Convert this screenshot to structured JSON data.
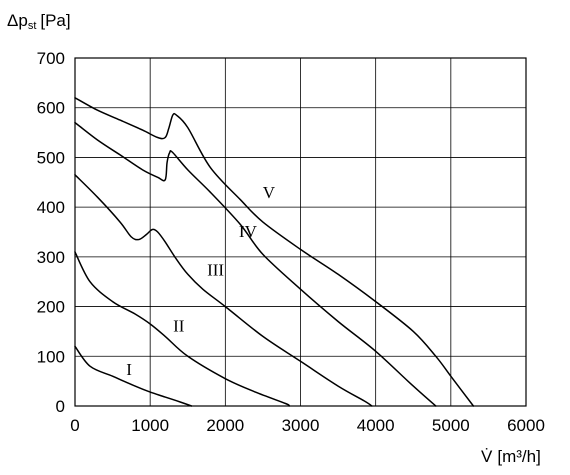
{
  "chart_data": {
    "type": "line",
    "ylabel": "Δp",
    "ylabel_sub": "st",
    "ylabel_unit": "[Pa]",
    "xlabel": "V̇",
    "xlabel_unit": "[m³/h]",
    "xlim": [
      0,
      6000
    ],
    "ylim": [
      0,
      700
    ],
    "xticks": [
      0,
      1000,
      2000,
      3000,
      4000,
      5000,
      6000
    ],
    "yticks": [
      0,
      100,
      200,
      300,
      400,
      500,
      600,
      700
    ],
    "grid": true,
    "series": [
      {
        "name": "I",
        "x": [
          0,
          200,
          500,
          800,
          1000,
          1200,
          1400,
          1550
        ],
        "y": [
          120,
          80,
          60,
          40,
          28,
          18,
          8,
          0
        ]
      },
      {
        "name": "II",
        "x": [
          0,
          200,
          500,
          800,
          1000,
          1200,
          1500,
          2000,
          2400,
          2800,
          2850
        ],
        "y": [
          310,
          250,
          210,
          185,
          165,
          140,
          100,
          55,
          28,
          5,
          0
        ]
      },
      {
        "name": "III",
        "x": [
          0,
          300,
          600,
          750,
          850,
          950,
          1030,
          1100,
          1200,
          1350,
          1500,
          1700,
          2000,
          2500,
          3000,
          3500,
          3850,
          3950
        ],
        "y": [
          465,
          420,
          370,
          340,
          335,
          345,
          355,
          350,
          330,
          295,
          265,
          235,
          200,
          140,
          90,
          40,
          10,
          0
        ]
      },
      {
        "name": "IV",
        "x": [
          0,
          300,
          600,
          900,
          1100,
          1200,
          1225,
          1260,
          1300,
          1500,
          1800,
          2200,
          2500,
          3000,
          3500,
          4000,
          4500,
          4800
        ],
        "y": [
          570,
          535,
          505,
          475,
          460,
          455,
          490,
          510,
          510,
          475,
          430,
          365,
          305,
          235,
          170,
          110,
          40,
          0
        ]
      },
      {
        "name": "V",
        "x": [
          0,
          300,
          600,
          900,
          1100,
          1200,
          1250,
          1300,
          1350,
          1500,
          1800,
          2200,
          2500,
          3000,
          3500,
          4000,
          4500,
          4800,
          5000,
          5300
        ],
        "y": [
          620,
          595,
          575,
          555,
          540,
          540,
          560,
          585,
          585,
          560,
          480,
          415,
          370,
          315,
          265,
          210,
          150,
          100,
          60,
          0
        ]
      }
    ],
    "curve_labels": [
      {
        "text": "I",
        "x": 720,
        "y": 62
      },
      {
        "text": "II",
        "x": 1380,
        "y": 150
      },
      {
        "text": "III",
        "x": 1870,
        "y": 262
      },
      {
        "text": "IV",
        "x": 2300,
        "y": 340
      },
      {
        "text": "V",
        "x": 2580,
        "y": 418
      }
    ]
  }
}
